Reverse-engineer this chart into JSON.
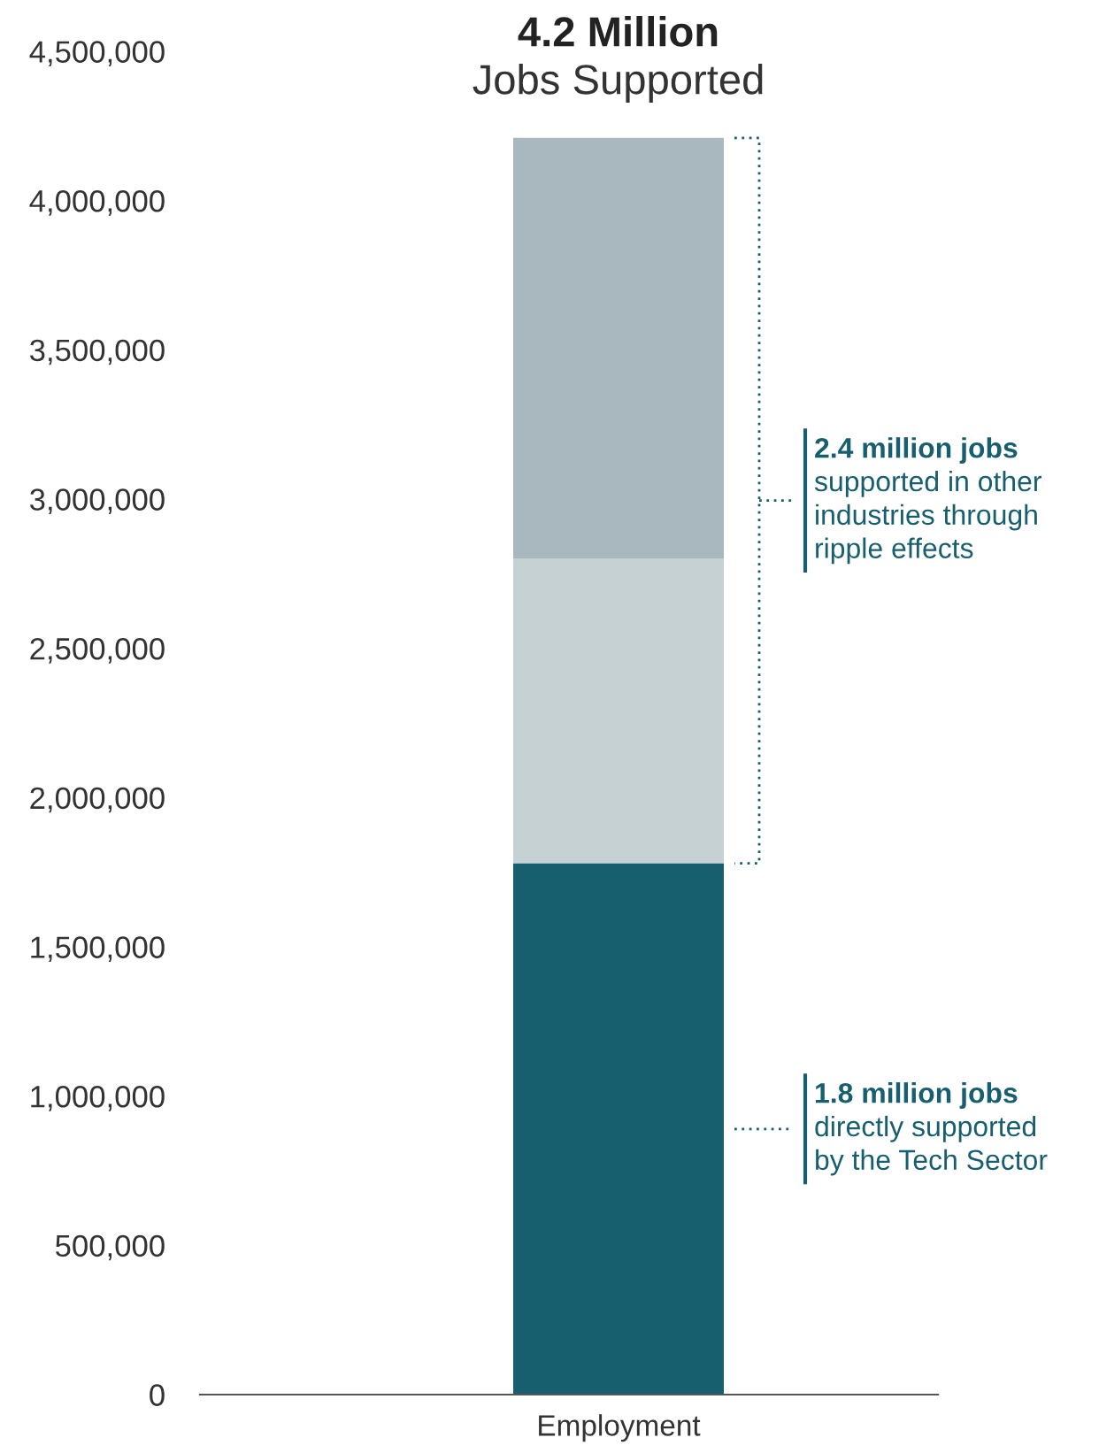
{
  "chart_data": {
    "type": "bar",
    "stacked": true,
    "title": "4.2 Million",
    "subtitle": "Jobs Supported",
    "categories": [
      "Employment"
    ],
    "series": [
      {
        "color": "#175f6f",
        "values": [
          1780000
        ]
      },
      {
        "color": "#c5d1d3",
        "values": [
          1020000
        ]
      },
      {
        "color": "#a9b8be",
        "values": [
          1410000
        ]
      }
    ],
    "ylim": [
      0,
      4500000
    ],
    "yticks": [
      {
        "value": 0,
        "label": "0"
      },
      {
        "value": 500000,
        "label": "500,000"
      },
      {
        "value": 1000000,
        "label": "1,000,000"
      },
      {
        "value": 1500000,
        "label": "1,500,000"
      },
      {
        "value": 2000000,
        "label": "2,000,000"
      },
      {
        "value": 2500000,
        "label": "2,500,000"
      },
      {
        "value": 3000000,
        "label": "3,000,000"
      },
      {
        "value": 3500000,
        "label": "3,500,000"
      },
      {
        "value": 4000000,
        "label": "4,000,000"
      },
      {
        "value": 4500000,
        "label": "4,500,000"
      }
    ],
    "annotations": [
      "2.4 million jobs\nsupported in other\nindustries through\nripple effects",
      "1.8 million jobs\ndirectly supported\nby the Tech Sector"
    ],
    "grid": false,
    "legend": false
  }
}
